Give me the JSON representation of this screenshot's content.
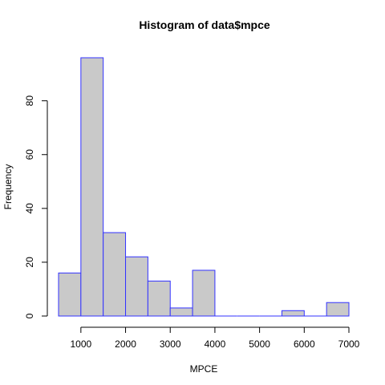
{
  "chart_data": {
    "type": "bar",
    "title": "Histogram of data$mpce",
    "xlabel": "MPCE",
    "ylabel": "Frequency",
    "bins": [
      {
        "x0": 500,
        "x1": 1000,
        "count": 16
      },
      {
        "x0": 1000,
        "x1": 1500,
        "count": 96
      },
      {
        "x0": 1500,
        "x1": 2000,
        "count": 31
      },
      {
        "x0": 2000,
        "x1": 2500,
        "count": 22
      },
      {
        "x0": 2500,
        "x1": 3000,
        "count": 13
      },
      {
        "x0": 3000,
        "x1": 3500,
        "count": 3
      },
      {
        "x0": 3500,
        "x1": 4000,
        "count": 17
      },
      {
        "x0": 4000,
        "x1": 4500,
        "count": 0
      },
      {
        "x0": 4500,
        "x1": 5000,
        "count": 0
      },
      {
        "x0": 5000,
        "x1": 5500,
        "count": 0
      },
      {
        "x0": 5500,
        "x1": 6000,
        "count": 2
      },
      {
        "x0": 6000,
        "x1": 6500,
        "count": 0
      },
      {
        "x0": 6500,
        "x1": 7000,
        "count": 5
      }
    ],
    "xticks": [
      1000,
      2000,
      3000,
      4000,
      5000,
      6000,
      7000
    ],
    "yticks": [
      0,
      20,
      40,
      60,
      80
    ],
    "xlim": [
      500,
      7000
    ],
    "ylim": [
      0,
      96
    ],
    "bar_fill": "#c9c9c9",
    "bar_stroke": "#3333ff",
    "grid": false,
    "legend": "none"
  }
}
